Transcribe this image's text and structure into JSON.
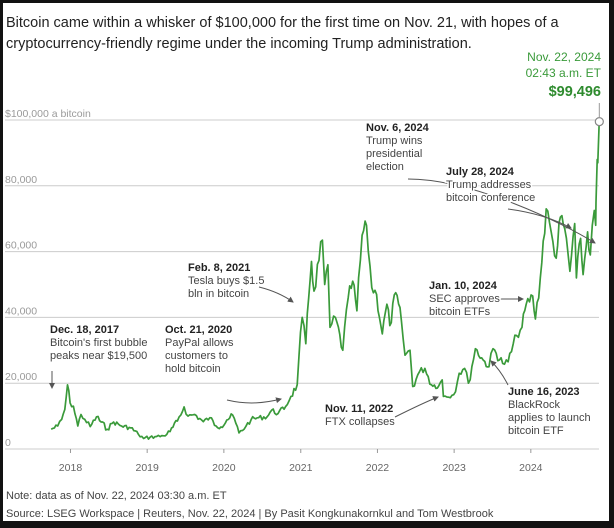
{
  "headline": "Bitcoin came within a whisker of $100,000 for the first time on Nov. 21, with hopes of a cryptocurrency-friendly regime under the incoming Trump administration.",
  "note": "Note: data as of Nov. 22, 2024 03:30 a.m. ET",
  "source": "Source: LSEG Workspace | Reuters, Nov. 22, 2024 | By Pasit Kongkunakornkul and Tom Westbrook",
  "colors": {
    "line": "#3a9a3a",
    "grid": "#cccccc",
    "arrow": "#555555",
    "background": "#ffffff",
    "frame": "#121212"
  },
  "chart_data": {
    "type": "line",
    "title": "",
    "xlabel": "",
    "ylabel": "",
    "x_range": [
      "2017-10-01",
      "2024-11-22"
    ],
    "ylim": [
      0,
      100000
    ],
    "yticks": [
      {
        "value": 0,
        "label": "0"
      },
      {
        "value": 20000,
        "label": "20,000"
      },
      {
        "value": 40000,
        "label": "40,000"
      },
      {
        "value": 60000,
        "label": "60,000"
      },
      {
        "value": 80000,
        "label": "80,000"
      },
      {
        "value": 100000,
        "label": "$100,000 a bitcoin"
      }
    ],
    "xticks": [
      "2018",
      "2019",
      "2020",
      "2021",
      "2022",
      "2023",
      "2024"
    ],
    "grid": "horizontal",
    "series": [
      {
        "points": [
          [
            "2017-10-01",
            6000
          ],
          [
            "2017-11-01",
            7000
          ],
          [
            "2017-11-20",
            9000
          ],
          [
            "2017-12-05",
            12000
          ],
          [
            "2017-12-18",
            19500
          ],
          [
            "2017-12-30",
            14000
          ],
          [
            "2018-01-15",
            13000
          ],
          [
            "2018-02-05",
            7000
          ],
          [
            "2018-02-20",
            10500
          ],
          [
            "2018-03-10",
            9000
          ],
          [
            "2018-04-05",
            6800
          ],
          [
            "2018-05-05",
            9800
          ],
          [
            "2018-06-25",
            6000
          ],
          [
            "2018-07-25",
            8200
          ],
          [
            "2018-09-01",
            7000
          ],
          [
            "2018-10-15",
            6400
          ],
          [
            "2018-11-20",
            4500
          ],
          [
            "2018-12-15",
            3200
          ],
          [
            "2019-01-15",
            3600
          ],
          [
            "2019-02-15",
            3800
          ],
          [
            "2019-03-20",
            4000
          ],
          [
            "2019-04-20",
            5300
          ],
          [
            "2019-05-25",
            8500
          ],
          [
            "2019-06-26",
            12800
          ],
          [
            "2019-07-15",
            10000
          ],
          [
            "2019-08-15",
            10500
          ],
          [
            "2019-09-25",
            8300
          ],
          [
            "2019-10-26",
            9500
          ],
          [
            "2019-11-25",
            7000
          ],
          [
            "2019-12-18",
            6700
          ],
          [
            "2020-01-15",
            8800
          ],
          [
            "2020-02-12",
            10300
          ],
          [
            "2020-03-13",
            4900
          ],
          [
            "2020-04-15",
            6900
          ],
          [
            "2020-05-10",
            9000
          ],
          [
            "2020-06-15",
            9500
          ],
          [
            "2020-07-25",
            9800
          ],
          [
            "2020-08-15",
            11800
          ],
          [
            "2020-09-15",
            10800
          ],
          [
            "2020-10-21",
            12900
          ],
          [
            "2020-11-15",
            16000
          ],
          [
            "2020-12-15",
            19500
          ],
          [
            "2021-01-08",
            40000
          ],
          [
            "2021-01-25",
            32000
          ],
          [
            "2021-02-08",
            46000
          ],
          [
            "2021-02-21",
            57000
          ],
          [
            "2021-03-05",
            48000
          ],
          [
            "2021-04-14",
            63500
          ],
          [
            "2021-04-25",
            50000
          ],
          [
            "2021-05-10",
            56000
          ],
          [
            "2021-05-20",
            37000
          ],
          [
            "2021-06-15",
            40000
          ],
          [
            "2021-07-20",
            30000
          ],
          [
            "2021-08-15",
            46000
          ],
          [
            "2021-09-05",
            51000
          ],
          [
            "2021-09-25",
            42000
          ],
          [
            "2021-10-20",
            65000
          ],
          [
            "2021-11-10",
            68000
          ],
          [
            "2021-12-05",
            49000
          ],
          [
            "2021-12-28",
            47000
          ],
          [
            "2022-01-24",
            35000
          ],
          [
            "2022-02-15",
            44000
          ],
          [
            "2022-03-01",
            37500
          ],
          [
            "2022-03-29",
            47500
          ],
          [
            "2022-04-25",
            39000
          ],
          [
            "2022-05-12",
            28500
          ],
          [
            "2022-06-05",
            30000
          ],
          [
            "2022-06-18",
            19000
          ],
          [
            "2022-07-20",
            23500
          ],
          [
            "2022-08-15",
            24500
          ],
          [
            "2022-09-15",
            19500
          ],
          [
            "2022-10-20",
            19200
          ],
          [
            "2022-11-05",
            21000
          ],
          [
            "2022-11-11",
            16000
          ],
          [
            "2022-12-30",
            16500
          ],
          [
            "2023-01-25",
            23000
          ],
          [
            "2023-02-20",
            24500
          ],
          [
            "2023-03-10",
            20000
          ],
          [
            "2023-04-12",
            30500
          ],
          [
            "2023-05-20",
            27000
          ],
          [
            "2023-06-16",
            25000
          ],
          [
            "2023-07-05",
            30500
          ],
          [
            "2023-08-20",
            26000
          ],
          [
            "2023-09-15",
            26500
          ],
          [
            "2023-10-25",
            34500
          ],
          [
            "2023-11-20",
            37000
          ],
          [
            "2023-12-10",
            44000
          ],
          [
            "2024-01-10",
            46500
          ],
          [
            "2024-01-23",
            39500
          ],
          [
            "2024-02-15",
            52000
          ],
          [
            "2024-03-14",
            73000
          ],
          [
            "2024-04-15",
            63000
          ],
          [
            "2024-05-01",
            58000
          ],
          [
            "2024-05-21",
            70500
          ],
          [
            "2024-06-10",
            67000
          ],
          [
            "2024-07-05",
            54000
          ],
          [
            "2024-07-28",
            68500
          ],
          [
            "2024-08-05",
            52000
          ],
          [
            "2024-08-25",
            64000
          ],
          [
            "2024-09-06",
            53000
          ],
          [
            "2024-09-27",
            66000
          ],
          [
            "2024-10-10",
            59000
          ],
          [
            "2024-10-29",
            72500
          ],
          [
            "2024-11-05",
            68000
          ],
          [
            "2024-11-06",
            75000
          ],
          [
            "2024-11-12",
            88000
          ],
          [
            "2024-11-15",
            87000
          ],
          [
            "2024-11-21",
            98500
          ],
          [
            "2024-11-22",
            99496
          ]
        ]
      }
    ],
    "latest": {
      "date_line1": "Nov. 22, 2024",
      "date_line2": "02:43 a.m. ET",
      "value_label": "$99,496",
      "date": "2024-11-22",
      "value": 99496
    },
    "annotations": [
      {
        "date_label": "Dec. 18, 2017",
        "lines": [
          "Bitcoin's first bubble",
          "peaks near $19,500"
        ]
      },
      {
        "date_label": "Oct. 21, 2020",
        "lines": [
          "PayPal allows",
          "customers to",
          "hold bitcoin"
        ]
      },
      {
        "date_label": "Feb. 8, 2021",
        "lines": [
          "Tesla buys $1.5",
          "bln in bitcoin"
        ]
      },
      {
        "date_label": "Nov. 6, 2024",
        "lines": [
          "Trump wins",
          "presidential",
          "election"
        ]
      },
      {
        "date_label": "July 28, 2024",
        "lines": [
          "Trump addresses",
          "bitcoin conference"
        ]
      },
      {
        "date_label": "Jan. 10, 2024",
        "lines": [
          "SEC approves",
          "bitcoin ETFs"
        ]
      },
      {
        "date_label": "Nov. 11, 2022",
        "lines": [
          "FTX collapses"
        ]
      },
      {
        "date_label": "June 16, 2023",
        "lines": [
          "BlackRock",
          "applies to launch",
          "bitcoin ETF"
        ]
      }
    ]
  }
}
